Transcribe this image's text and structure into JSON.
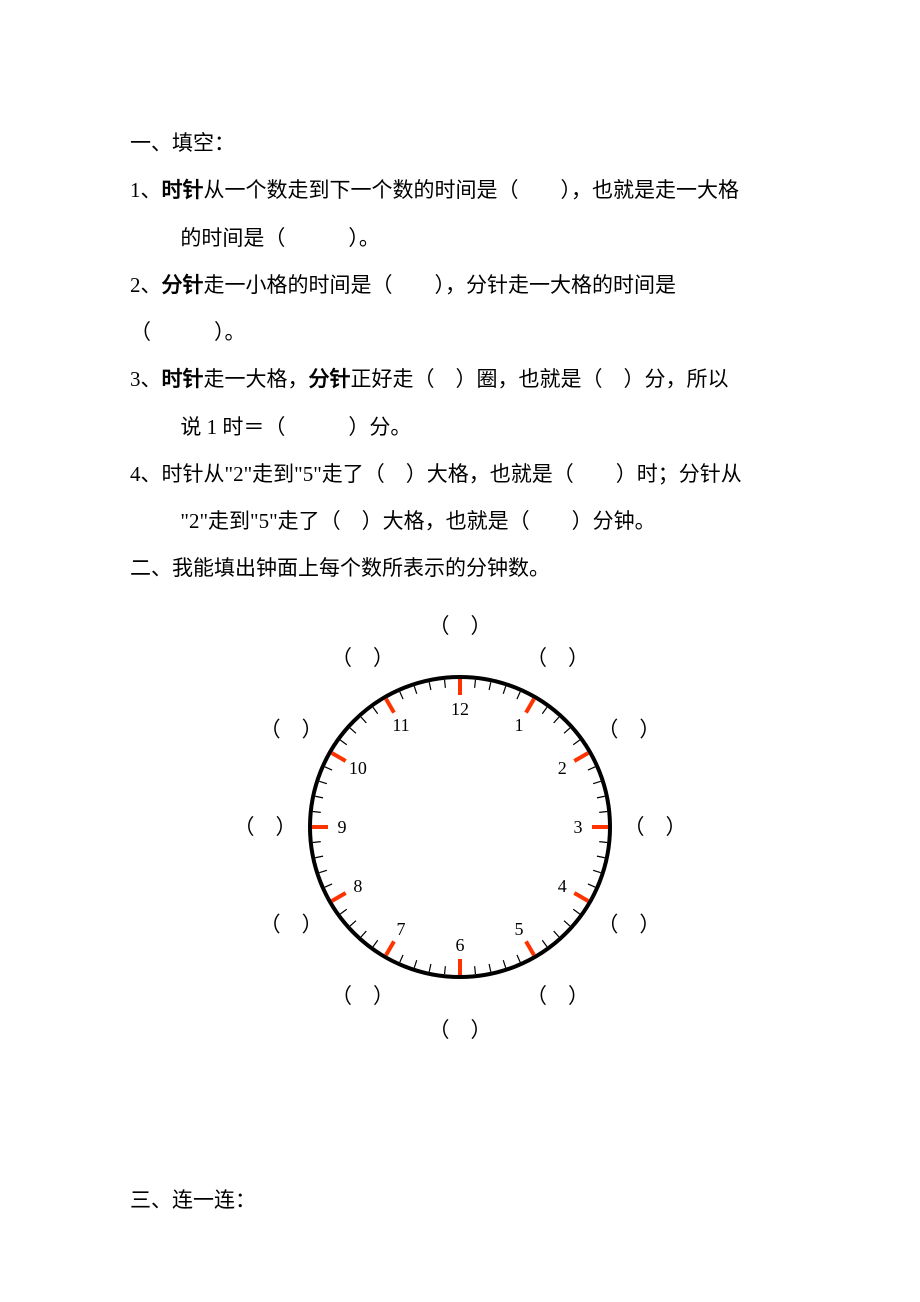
{
  "section1": {
    "heading": "一、填空：",
    "questions": [
      {
        "num": "1、",
        "line1_pre": "",
        "bold1": "时针",
        "line1_post": "从一个数走到下一个数的时间是（　　），也就是走一大格",
        "line2": "的时间是（　　　）。"
      },
      {
        "num": "2、",
        "line1_pre": "",
        "bold1": "分针",
        "line1_post": "走一小格的时间是（　　），分针走一大格的时间是",
        "line2_nohang": "（　　　）。"
      },
      {
        "num": "3、",
        "line1_pre": "",
        "bold1": "时针",
        "mid1": "走一大格，",
        "bold2": "分针",
        "line1_post": "正好走（　）圈，也就是（　）分，所以",
        "line2": "说 1 时＝（　　　）分。"
      },
      {
        "num": "4、",
        "line1": "时针从\"2\"走到\"5\"走了（　）大格，也就是（　　）时；分针从",
        "line2": "\"2\"走到\"5\"走了（　）大格，也就是（　　）分钟。"
      }
    ]
  },
  "section2": {
    "heading": "二、我能填出钟面上每个数所表示的分钟数。",
    "clock": {
      "radius": 150,
      "stroke": "#000000",
      "stroke_width": 4,
      "minor_tick_len": 10,
      "minor_tick_color": "#000000",
      "minor_tick_width": 1.2,
      "major_tick_len": 18,
      "major_tick_color": "#ff3300",
      "major_tick_width": 4,
      "numbers": [
        "12",
        "1",
        "2",
        "3",
        "4",
        "5",
        "6",
        "7",
        "8",
        "9",
        "10",
        "11"
      ],
      "number_radius": 118,
      "label": "（　）",
      "label_radius": 195,
      "number_fontsize": 18,
      "label_fontsize": 21
    }
  },
  "section3": {
    "heading": "三、连一连："
  }
}
